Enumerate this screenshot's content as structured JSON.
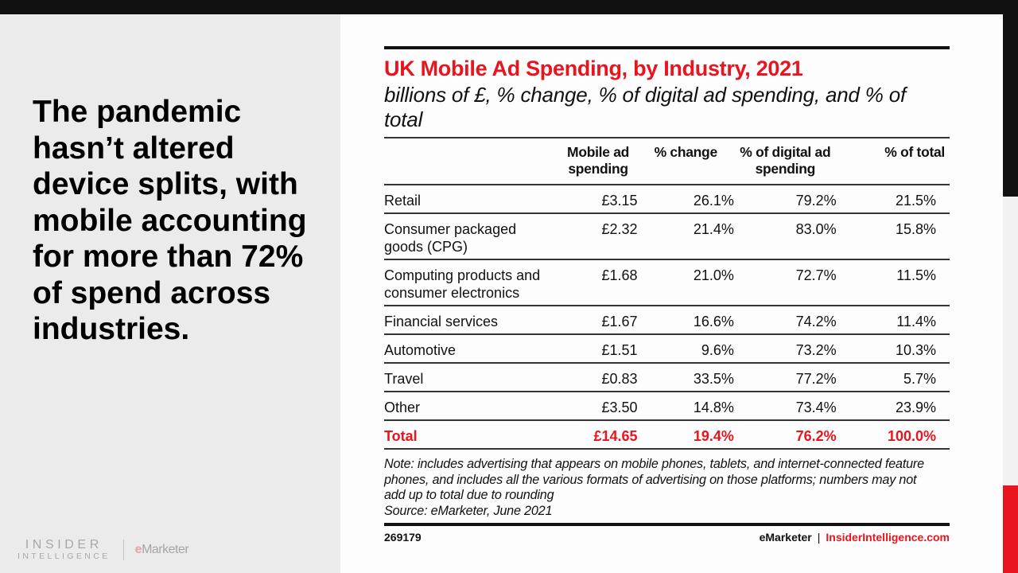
{
  "headline": "The pandemic hasn’t altered device splits, with mobile accounting for more than 72% of spend across industries.",
  "logo": {
    "insider_line1": "INSIDER",
    "insider_line2": "INTELLIGENCE",
    "emarketer_e": "e",
    "emarketer_rest": "Marketer"
  },
  "colors": {
    "accent": "#e8141e",
    "text": "#111111",
    "left_bg": "#ebebeb"
  },
  "chart_data": {
    "type": "table",
    "title": "UK Mobile Ad Spending, by Industry, 2021",
    "subtitle": "billions of £, % change, % of digital ad spending, and % of total",
    "columns": [
      "Mobile ad spending",
      "% change",
      "% of digital ad spending",
      "% of total"
    ],
    "rows": [
      {
        "industry": "Retail",
        "values": [
          "£3.15",
          "26.1%",
          "79.2%",
          "21.5%"
        ]
      },
      {
        "industry": "Consumer packaged goods (CPG)",
        "values": [
          "£2.32",
          "21.4%",
          "83.0%",
          "15.8%"
        ]
      },
      {
        "industry": "Computing products and consumer electronics",
        "values": [
          "£1.68",
          "21.0%",
          "72.7%",
          "11.5%"
        ]
      },
      {
        "industry": "Financial services",
        "values": [
          "£1.67",
          "16.6%",
          "74.2%",
          "11.4%"
        ]
      },
      {
        "industry": "Automotive",
        "values": [
          "£1.51",
          "9.6%",
          "73.2%",
          "10.3%"
        ]
      },
      {
        "industry": "Travel",
        "values": [
          "£0.83",
          "33.5%",
          "77.2%",
          "5.7%"
        ]
      },
      {
        "industry": "Other",
        "values": [
          "£3.50",
          "14.8%",
          "73.4%",
          "23.9%"
        ]
      }
    ],
    "total": {
      "industry": "Total",
      "values": [
        "£14.65",
        "19.4%",
        "76.2%",
        "100.0%"
      ]
    },
    "note": "Note: includes advertising that appears on mobile phones, tablets, and internet-connected feature phones, and includes all the various formats of advertising on those platforms; numbers may not add up to total due to rounding",
    "source": "Source: eMarketer, June 2021",
    "chart_id": "269179",
    "footer_brand": "eMarketer",
    "footer_separator": "|",
    "footer_site": "InsiderIntelligence.com"
  }
}
